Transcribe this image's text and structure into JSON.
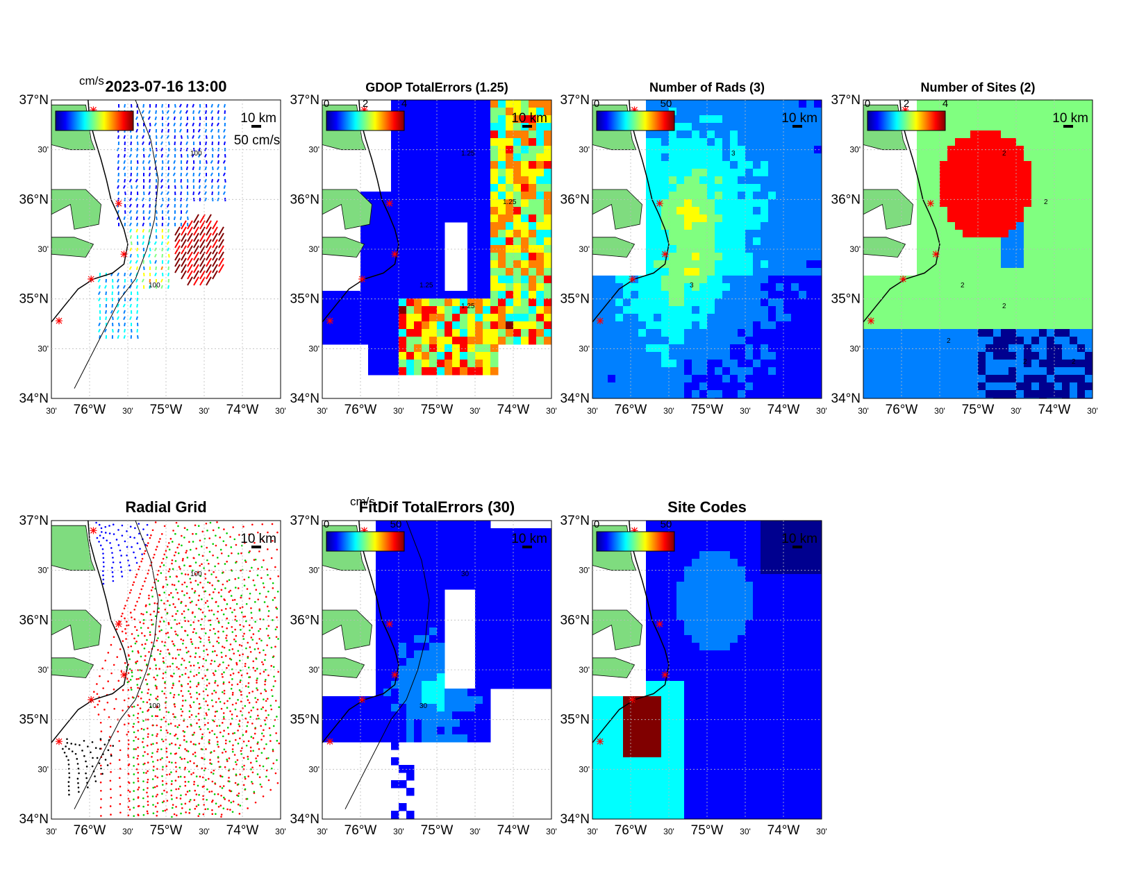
{
  "colors": {
    "land": "#7fdc7f",
    "coast": "#000000",
    "site_marker": "#ff0000",
    "grid": "#bbbbbb",
    "jet": [
      "#00008f",
      "#0000ff",
      "#0080ff",
      "#00ffff",
      "#80ff80",
      "#ffff00",
      "#ff8000",
      "#ff0000",
      "#800000"
    ],
    "radial_sites": [
      "#0000ff",
      "#ff0000",
      "#00cc00",
      "#ff0000",
      "#000000"
    ]
  },
  "axes": {
    "lon_ticks": [
      "30'",
      "76°W",
      "30'",
      "75°W",
      "30'",
      "74°W",
      "30'"
    ],
    "lat_ticks": [
      "37°N",
      "30'",
      "36°N",
      "30'",
      "35°N",
      "30'",
      "34°N"
    ],
    "scale_bar": "10 km"
  },
  "panels": [
    {
      "id": "totals",
      "title": "2023-07-16 13:00",
      "type": "vectors",
      "colorbar_unit": "cm/s",
      "colorbar_ticks": [],
      "vector_scale": "50 cm/s",
      "contour_labels": [
        "100",
        "100"
      ],
      "overlap_text": "cm/s"
    },
    {
      "id": "gdop",
      "title": "GDOP TotalErrors (1.25)",
      "type": "field",
      "colorbar_unit": "",
      "colorbar_ticks": [
        "0",
        "2",
        "4"
      ],
      "contour_labels": [
        "1.25",
        "1.25",
        "1.25",
        "1.25"
      ]
    },
    {
      "id": "nrads",
      "title": "Number of Rads (3)",
      "type": "field",
      "colorbar_unit": "",
      "colorbar_ticks": [
        "0",
        "50"
      ],
      "contour_labels": [
        "3",
        "3"
      ]
    },
    {
      "id": "nsites",
      "title": "Number of Sites (2)",
      "type": "field",
      "colorbar_unit": "",
      "colorbar_ticks": [
        "0",
        "2",
        "4"
      ],
      "contour_labels": [
        "2",
        "2",
        "2",
        "2",
        "2",
        "2",
        "2"
      ]
    },
    {
      "id": "radgrid",
      "title": "Radial Grid",
      "type": "radial",
      "colorbar_ticks": [],
      "contour_labels": [
        "100",
        "100"
      ]
    },
    {
      "id": "fitdif",
      "title": "FitDif TotalErrors (30)",
      "type": "field",
      "colorbar_unit": "cm/s",
      "colorbar_ticks": [
        "0",
        "50"
      ],
      "contour_labels": [
        "30",
        "30"
      ]
    },
    {
      "id": "sitecodes",
      "title": "Site Codes",
      "type": "field",
      "colorbar_unit": "",
      "colorbar_ticks": [
        "0",
        "50"
      ],
      "contour_labels": []
    }
  ]
}
